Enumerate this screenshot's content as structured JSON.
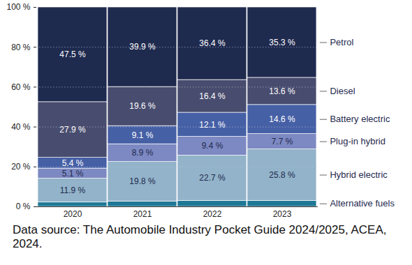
{
  "chart_data": {
    "type": "bar",
    "stacked": true,
    "data_labels": true,
    "legend": "right",
    "grid": true,
    "caption": "Data source: The Automobile Industry Pocket Guide 2024/2025, ACEA, 2024.",
    "categories": [
      "2020",
      "2021",
      "2022",
      "2023"
    ],
    "ylim": [
      0,
      100
    ],
    "yticks": [
      {
        "value": 0,
        "label": "0 %"
      },
      {
        "value": 20,
        "label": "20 %"
      },
      {
        "value": 40,
        "label": "40 %"
      },
      {
        "value": 60,
        "label": "60 %"
      },
      {
        "value": 80,
        "label": "80 %"
      },
      {
        "value": 100,
        "label": "100 %"
      }
    ],
    "series": [
      {
        "name": "Alternative fuels",
        "color": "#1f7896",
        "values": [
          2.2,
          2.7,
          3.0,
          3.0
        ],
        "value_labels": [
          null,
          null,
          null,
          null
        ]
      },
      {
        "name": "Hybrid electric",
        "color": "#92b3c9",
        "values": [
          11.9,
          19.8,
          22.7,
          25.8
        ],
        "value_labels": [
          "11.9 %",
          "19.8 %",
          "22.7 %",
          "25.8 %"
        ]
      },
      {
        "name": "Plug-in hybrid",
        "color": "#7d89c2",
        "values": [
          5.1,
          8.9,
          9.4,
          7.7
        ],
        "value_labels": [
          "5.1 %",
          "8.9 %",
          "9.4 %",
          "7.7 %"
        ]
      },
      {
        "name": "Battery electric",
        "color": "#4660a6",
        "values": [
          5.4,
          9.1,
          12.1,
          14.6
        ],
        "value_labels": [
          "5.4 %",
          "9.1 %",
          "12.1 %",
          "14.6 %"
        ]
      },
      {
        "name": "Diesel",
        "color": "#484c6e",
        "values": [
          27.9,
          19.6,
          16.4,
          13.6
        ],
        "value_labels": [
          "27.9 %",
          "19.6 %",
          "16.4 %",
          "13.6 %"
        ]
      },
      {
        "name": "Petrol",
        "color": "#1f2a4f",
        "values": [
          47.5,
          39.9,
          36.4,
          35.3
        ],
        "value_labels": [
          "47.5 %",
          "39.9 %",
          "36.4 %",
          "35.3 %"
        ]
      }
    ]
  }
}
